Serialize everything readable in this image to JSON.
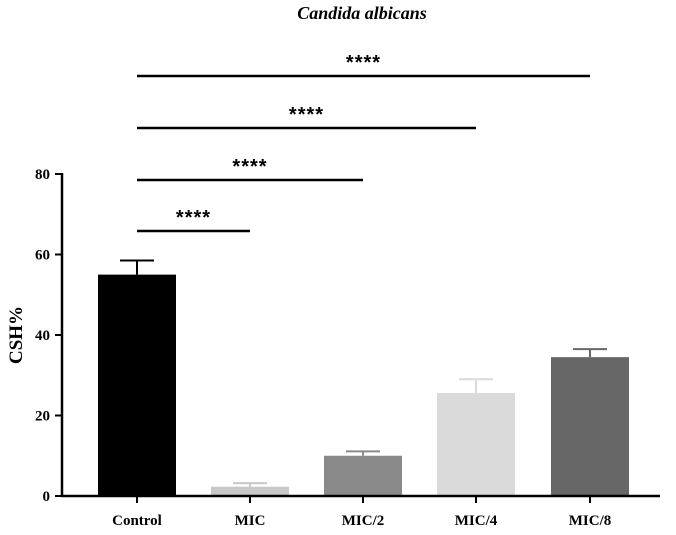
{
  "chart_data": {
    "type": "bar",
    "title": "Candida albicans",
    "xlabel": "",
    "ylabel": "CSH%",
    "ylim": [
      0,
      80
    ],
    "yticks": [
      0,
      20,
      40,
      60,
      80
    ],
    "categories": [
      "Control",
      "MIC",
      "MIC/2",
      "MIC/4",
      "MIC/8"
    ],
    "values": [
      55,
      2.3,
      10,
      25.6,
      34.5
    ],
    "errors": [
      3.5,
      0.9,
      1.1,
      3.4,
      2.0
    ],
    "bar_colors": [
      "#000000",
      "#c8c8c8",
      "#8a8a8a",
      "#dadada",
      "#676767"
    ],
    "comparisons": [
      {
        "from": "Control",
        "to": "MIC",
        "label": "****"
      },
      {
        "from": "Control",
        "to": "MIC/2",
        "label": "****"
      },
      {
        "from": "Control",
        "to": "MIC/4",
        "label": "****"
      },
      {
        "from": "Control",
        "to": "MIC/8",
        "label": "****"
      }
    ]
  }
}
